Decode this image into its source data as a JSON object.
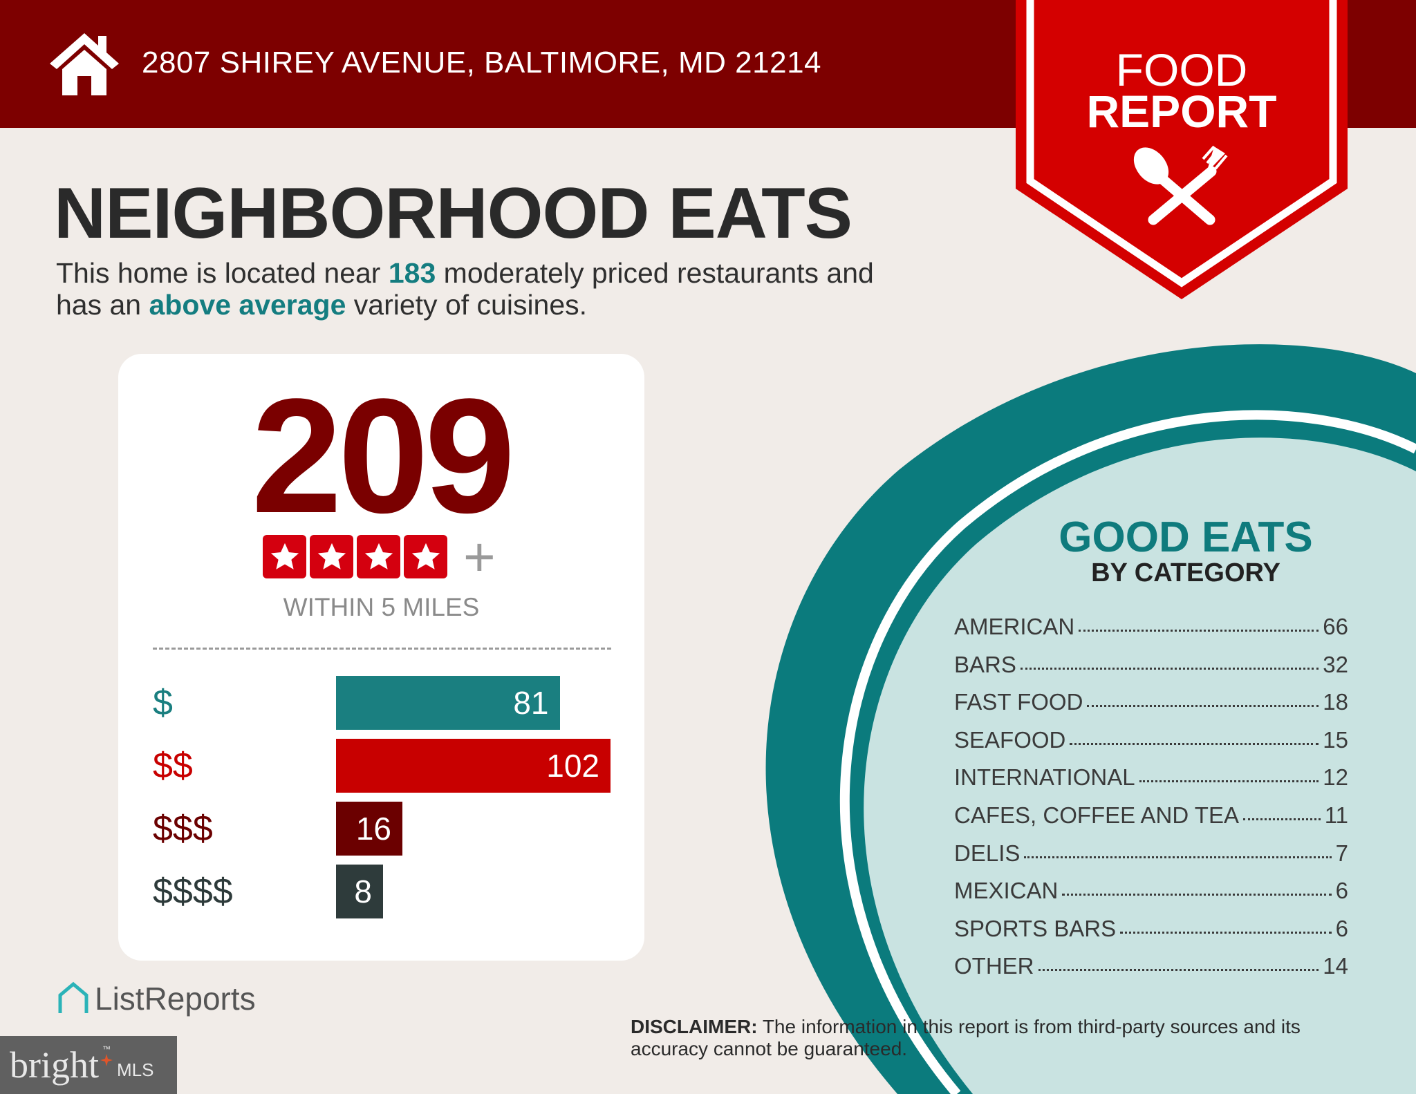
{
  "header": {
    "address": "2807 SHIREY AVENUE, BALTIMORE, MD 21214",
    "icon": "house-icon",
    "bg_color": "#7d0000"
  },
  "banner": {
    "line1": "FOOD",
    "line2": "REPORT",
    "icon": "spoon-fork-icon",
    "color": "#d40000"
  },
  "title": "NEIGHBORHOOD EATS",
  "subtitle": {
    "p1": "This home is located near ",
    "count": "183",
    "p2": " moderately priced restaurants and",
    "p3": "has an ",
    "variety": "above average",
    "p4": " variety of cuisines."
  },
  "summary": {
    "total": "209",
    "stars": 4,
    "stars_suffix": "+",
    "radius_label": "WITHIN 5 MILES"
  },
  "chart_data": {
    "type": "bar",
    "orientation": "horizontal",
    "categories": [
      "$",
      "$$",
      "$$$",
      "$$$$"
    ],
    "values": [
      81,
      102,
      16,
      8
    ],
    "colors": [
      "#1a7f80",
      "#c80000",
      "#6b0000",
      "#2e3b3b"
    ]
  },
  "good_eats": {
    "title": "GOOD EATS",
    "subtitle": "BY CATEGORY",
    "items": [
      {
        "label": "AMERICAN",
        "value": "66"
      },
      {
        "label": "BARS",
        "value": "32"
      },
      {
        "label": "FAST FOOD",
        "value": "18"
      },
      {
        "label": "SEAFOOD",
        "value": "15"
      },
      {
        "label": "INTERNATIONAL",
        "value": "12"
      },
      {
        "label": "CAFES, COFFEE AND TEA",
        "value": "11"
      },
      {
        "label": "DELIS",
        "value": "7"
      },
      {
        "label": "MEXICAN",
        "value": "6"
      },
      {
        "label": "SPORTS BARS",
        "value": "6"
      },
      {
        "label": "OTHER",
        "value": "14"
      }
    ]
  },
  "disclaimer": {
    "label": "DISCLAIMER:",
    "text": " The information in this report is from third-party sources and its accuracy cannot be guaranteed."
  },
  "footer": {
    "logo_text": "ListReports",
    "mls_logo_text": "bright",
    "mls_suffix": "MLS",
    "tm": "™"
  }
}
